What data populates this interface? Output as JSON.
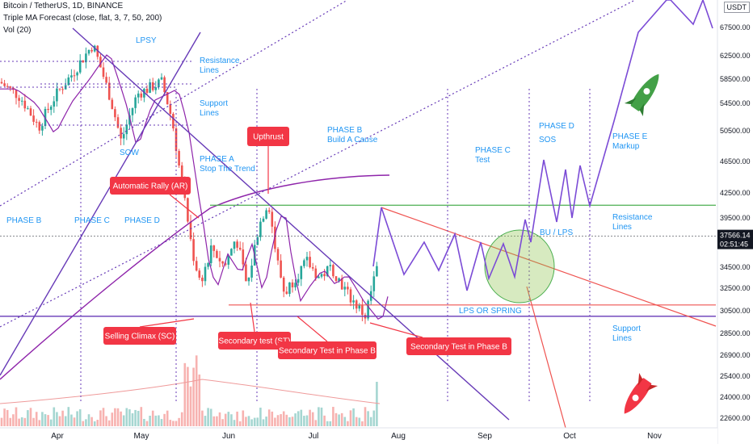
{
  "header": {
    "symbol_line": "Bitcoin / TetherUS, 1D, BINANCE",
    "indicator_line": "Triple MA Forecast (close, flat, 3, 7, 50, 200)",
    "volume_line": "Vol (20)",
    "currency": "USDT"
  },
  "chart_data": {
    "type": "line",
    "x_ticks": [
      "Apr",
      "May",
      "Jun",
      "Jul",
      "Aug",
      "Sep",
      "Oct",
      "Nov"
    ],
    "y_ticks": [
      "67500.00",
      "62500.00",
      "58500.00",
      "54500.00",
      "50500.00",
      "46500.00",
      "42500.00",
      "39500.00",
      "34500.00",
      "32500.00",
      "30500.00",
      "28500.00",
      "26900.00",
      "25400.00",
      "24000.00",
      "22600.00"
    ],
    "last_price": "37566.14",
    "countdown": "02:51:45",
    "phase_labels": [
      "PHASE B",
      "PHASE C",
      "PHASE D",
      "PHASE B\nBuild A Cause",
      "PHASE C\nTest",
      "PHASE D",
      "SOS",
      "PHASE E\nMarkup",
      "PHASE A\nStop The Trend",
      "LPSY",
      "SOW",
      "BU / LPS",
      "LPS OR SPRING"
    ],
    "line_labels": [
      "Resistance\nLines",
      "Support\nLines",
      "Resistance\nLines",
      "Support\nLines"
    ],
    "callouts": [
      "Upthrust",
      "Automatic Rally (AR)",
      "Selling Climax (SC)",
      "Secondary test (ST)",
      "Secondary Test in Phase B",
      "Secondary Test in Phase B"
    ],
    "resistance_level": 41000,
    "support_level": 30000,
    "mid_level": 31000,
    "colors": {
      "candle_up": "#26a69a",
      "candle_down": "#ef5350",
      "projection": "#7b4bd6",
      "ma_slow": "#8e24aa",
      "annotation": "#2196f3",
      "callout": "#f23645",
      "resistance_line": "#4caf50",
      "support_line": "#673ab7"
    }
  }
}
